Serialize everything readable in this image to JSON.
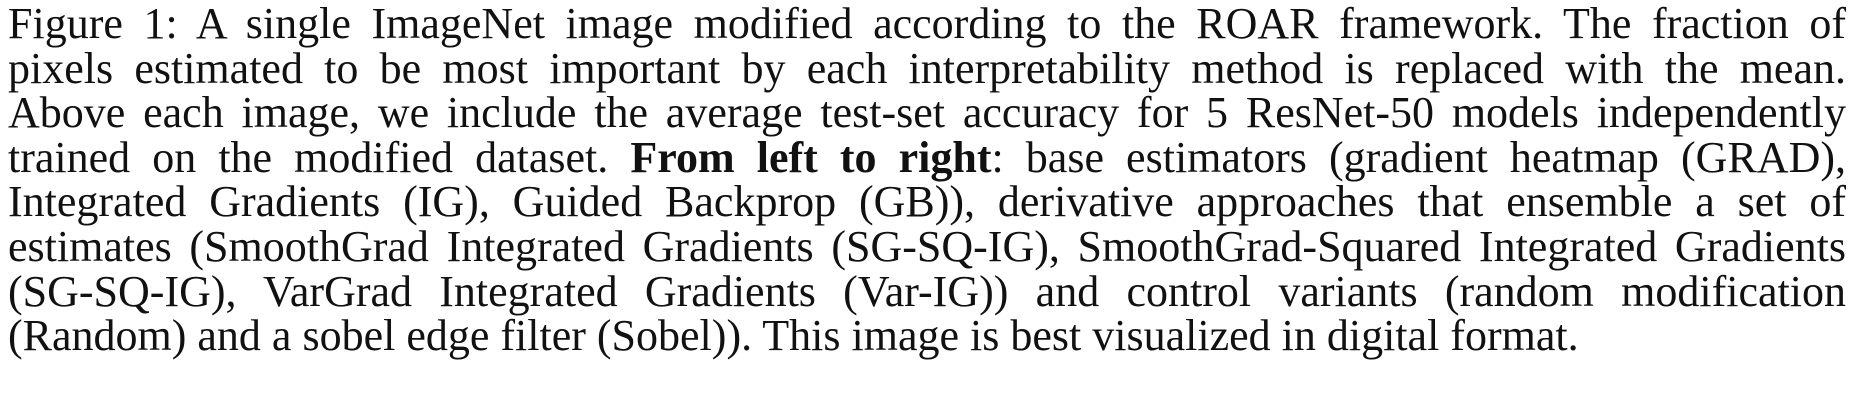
{
  "caption": {
    "lines": [
      "Figure 1: A single ImageNet image modified according to the ROAR framework. The fraction of",
      "pixels estimated to be most important by each interpretability method is replaced with the mean.",
      "Above each image, we include the average test-set accuracy for 5 ResNet-50 models independently",
      "trained on the modified dataset.",
      "From left to right",
      ": base estimators (gradient heatmap (GRAD),",
      "Integrated Gradients (IG), Guided Backprop (GB)), derivative approaches that ensemble a set of",
      "estimates (SmoothGrad Integrated Gradients (SG-SQ-IG), SmoothGrad-Squared Integrated Gradients",
      "(SG-SQ-IG), VarGrad Integrated Gradients (Var-IG)) and control variants (random modification",
      "(Random) and a sobel edge filter (Sobel)). This image is best visualized in digital format."
    ]
  }
}
